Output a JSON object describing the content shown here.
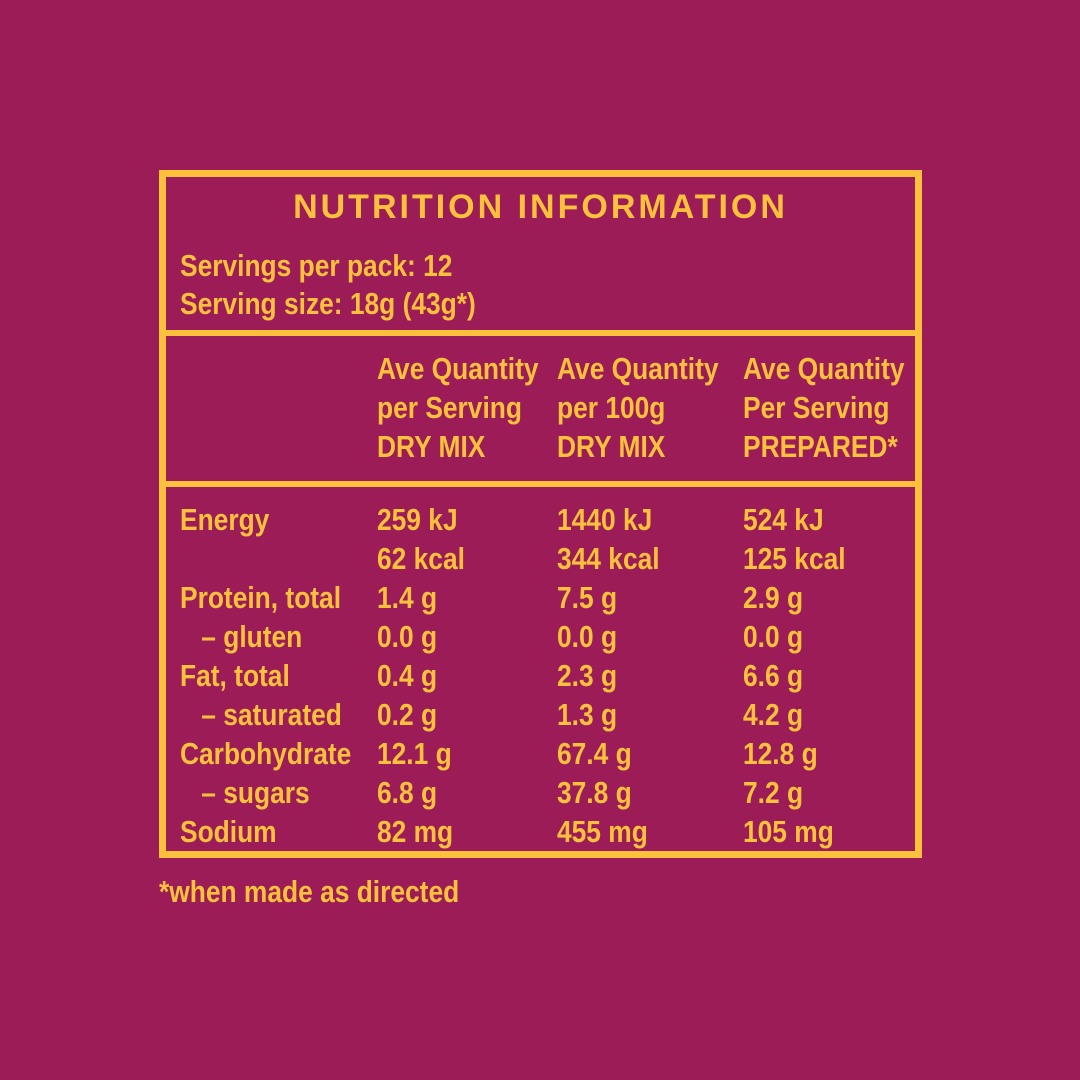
{
  "colors": {
    "background": "#9B1C56",
    "accent": "#FBC13D"
  },
  "panel": {
    "title": "NUTRITION INFORMATION",
    "servings_per_pack": "Servings per pack: 12",
    "serving_size": "Serving size: 18g (43g*)",
    "columns": [
      {
        "line1": "Ave Quantity",
        "line2": "per Serving",
        "line3": "DRY MIX"
      },
      {
        "line1": "Ave Quantity",
        "line2": "per 100g",
        "line3": "DRY MIX"
      },
      {
        "line1": "Ave Quantity",
        "line2": "Per Serving",
        "line3": "PREPARED*"
      }
    ],
    "rows": [
      {
        "label": "Energy",
        "c1": "259 kJ",
        "c2": "1440 kJ",
        "c3": "524 kJ",
        "indent": false
      },
      {
        "label": "",
        "c1": "62 kcal",
        "c2": "344 kcal",
        "c3": "125 kcal",
        "indent": false
      },
      {
        "label": "Protein, total",
        "c1": "1.4 g",
        "c2": "7.5 g",
        "c3": "2.9 g",
        "indent": false
      },
      {
        "label": "– gluten",
        "c1": "0.0 g",
        "c2": "0.0 g",
        "c3": "0.0 g",
        "indent": true
      },
      {
        "label": "Fat, total",
        "c1": "0.4 g",
        "c2": "2.3 g",
        "c3": "6.6 g",
        "indent": false
      },
      {
        "label": "– saturated",
        "c1": "0.2 g",
        "c2": "1.3 g",
        "c3": "4.2 g",
        "indent": true
      },
      {
        "label": "Carbohydrate",
        "c1": "12.1 g",
        "c2": "67.4 g",
        "c3": "12.8 g",
        "indent": false
      },
      {
        "label": "– sugars",
        "c1": "6.8 g",
        "c2": "37.8 g",
        "c3": "7.2 g",
        "indent": true
      },
      {
        "label": "Sodium",
        "c1": "82 mg",
        "c2": "455 mg",
        "c3": "105 mg",
        "indent": false
      }
    ],
    "footnote": "*when made as directed"
  }
}
